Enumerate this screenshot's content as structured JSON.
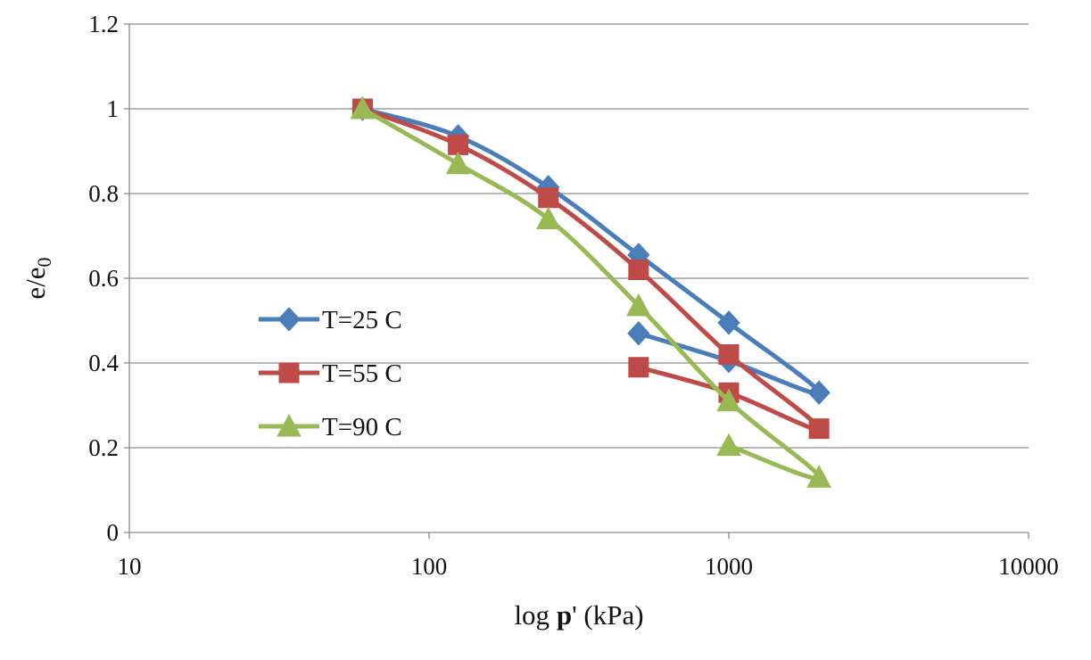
{
  "chart_data": {
    "type": "line",
    "xlabel": {
      "prefix": "log ",
      "bold": "p",
      "suffix": "' (kPa)"
    },
    "ylabel": {
      "main": "e/e",
      "sub": "0"
    },
    "x_scale": "log",
    "xlim": [
      10,
      10000
    ],
    "ylim": [
      0,
      1.2
    ],
    "x_ticks": [
      10,
      100,
      1000,
      10000
    ],
    "x_tick_labels": [
      "10",
      "100",
      "1000",
      "10000"
    ],
    "y_ticks": [
      0,
      0.2,
      0.4,
      0.6,
      0.8,
      1,
      1.2
    ],
    "y_tick_labels": [
      "0",
      "0.2",
      "0.4",
      "0.6",
      "0.8",
      "1",
      "1.2"
    ],
    "grid": "horizontal",
    "legend_position": "left-middle",
    "series": [
      {
        "name": "T=25 C",
        "color": "#4a7ebb",
        "marker": "diamond",
        "x": [
          60,
          125,
          250,
          500,
          1000,
          2000,
          1000,
          500
        ],
        "y": [
          1.0,
          0.935,
          0.815,
          0.655,
          0.495,
          0.33,
          0.405,
          0.47
        ]
      },
      {
        "name": "T=55 C",
        "color": "#be4b48",
        "marker": "square",
        "x": [
          60,
          125,
          250,
          500,
          1000,
          2000,
          1000,
          500
        ],
        "y": [
          1.0,
          0.915,
          0.79,
          0.62,
          0.42,
          0.245,
          0.33,
          0.39
        ]
      },
      {
        "name": "T=90 C",
        "color": "#98b954",
        "marker": "triangle",
        "x": [
          60,
          125,
          250,
          500,
          1000,
          2000,
          1000
        ],
        "y": [
          1.0,
          0.87,
          0.74,
          0.535,
          0.31,
          0.13,
          0.205
        ]
      }
    ]
  }
}
